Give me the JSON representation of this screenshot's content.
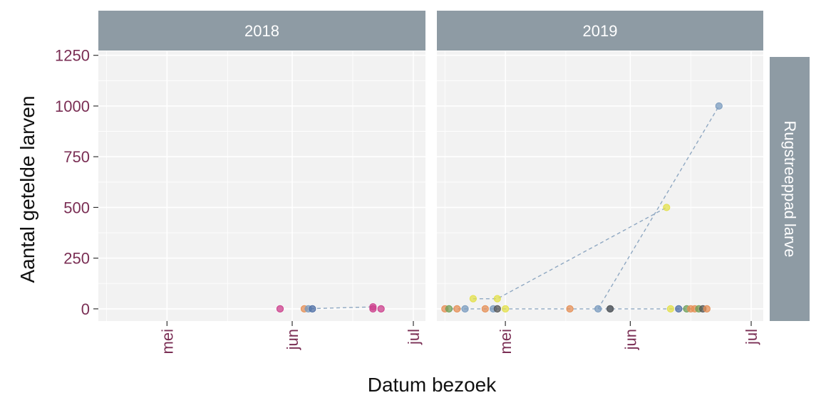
{
  "chart_data": {
    "type": "scatter",
    "xlabel": "Datum bezoek",
    "ylabel": "Aantal getelde larven",
    "ylim": [
      -60,
      1270
    ],
    "yticks": [
      0,
      250,
      500,
      750,
      1000,
      1250
    ],
    "xticks": [
      "mei",
      "jun",
      "jul"
    ],
    "xlim": [
      "2000-04-14",
      "2000-07-04"
    ],
    "row_strip": "Rugstreeppad larve",
    "grid": true,
    "facets": [
      {
        "label": "2018",
        "points": [
          {
            "date": "2000-05-29",
            "value": 0,
            "color": "#cc3f8c"
          },
          {
            "date": "2000-06-04",
            "value": 0,
            "color": "#e58f55"
          },
          {
            "date": "2000-06-05",
            "value": 0,
            "color": "#7a9bbf"
          },
          {
            "date": "2000-06-06",
            "value": 0,
            "color": "#4f6fa6"
          },
          {
            "date": "2000-06-21",
            "value": 10,
            "color": "#cc3f8c"
          },
          {
            "date": "2000-06-21",
            "value": 0,
            "color": "#cc3f8c"
          },
          {
            "date": "2000-06-23",
            "value": 0,
            "color": "#cc3f8c"
          }
        ],
        "lines": [
          {
            "dates": [
              "2000-06-04",
              "2000-06-21"
            ],
            "values": [
              0,
              10
            ]
          }
        ]
      },
      {
        "label": "2019",
        "points": [
          {
            "date": "2000-04-16",
            "value": 0,
            "color": "#e58f55"
          },
          {
            "date": "2000-04-17",
            "value": 0,
            "color": "#6fa05a"
          },
          {
            "date": "2000-04-19",
            "value": 0,
            "color": "#e58f55"
          },
          {
            "date": "2000-04-23",
            "value": 50,
            "color": "#e3e04a"
          },
          {
            "date": "2000-04-21",
            "value": 0,
            "color": "#7a9bbf"
          },
          {
            "date": "2000-04-26",
            "value": 0,
            "color": "#e58f55"
          },
          {
            "date": "2000-04-28",
            "value": 0,
            "color": "#7a9bbf"
          },
          {
            "date": "2000-04-29",
            "value": 50,
            "color": "#e3e04a"
          },
          {
            "date": "2000-04-29",
            "value": 0,
            "color": "#555555"
          },
          {
            "date": "2000-05-01",
            "value": 0,
            "color": "#e3e04a"
          },
          {
            "date": "2000-05-17",
            "value": 0,
            "color": "#e58f55"
          },
          {
            "date": "2000-05-24",
            "value": 0,
            "color": "#7a9bbf"
          },
          {
            "date": "2000-05-27",
            "value": 0,
            "color": "#7a9bbf"
          },
          {
            "date": "2000-05-27",
            "value": 0,
            "color": "#555555"
          },
          {
            "date": "2000-06-10",
            "value": 500,
            "color": "#e3e04a"
          },
          {
            "date": "2000-06-11",
            "value": 0,
            "color": "#e3e04a"
          },
          {
            "date": "2000-06-13",
            "value": 0,
            "color": "#4f6fa6"
          },
          {
            "date": "2000-06-15",
            "value": 0,
            "color": "#6fa05a"
          },
          {
            "date": "2000-06-16",
            "value": 0,
            "color": "#e58f55"
          },
          {
            "date": "2000-06-17",
            "value": 0,
            "color": "#e58f55"
          },
          {
            "date": "2000-06-18",
            "value": 0,
            "color": "#6fa05a"
          },
          {
            "date": "2000-06-19",
            "value": 0,
            "color": "#555555"
          },
          {
            "date": "2000-06-20",
            "value": 0,
            "color": "#e58f55"
          },
          {
            "date": "2000-06-23",
            "value": 1000,
            "color": "#7a9bbf"
          }
        ],
        "lines": [
          {
            "dates": [
              "2000-04-23",
              "2000-04-29",
              "2000-06-10"
            ],
            "values": [
              50,
              50,
              500
            ]
          },
          {
            "dates": [
              "2000-05-24",
              "2000-06-23"
            ],
            "values": [
              0,
              1000
            ]
          },
          {
            "dates": [
              "2000-04-16",
              "2000-06-20"
            ],
            "values": [
              0,
              0
            ]
          }
        ]
      }
    ]
  }
}
